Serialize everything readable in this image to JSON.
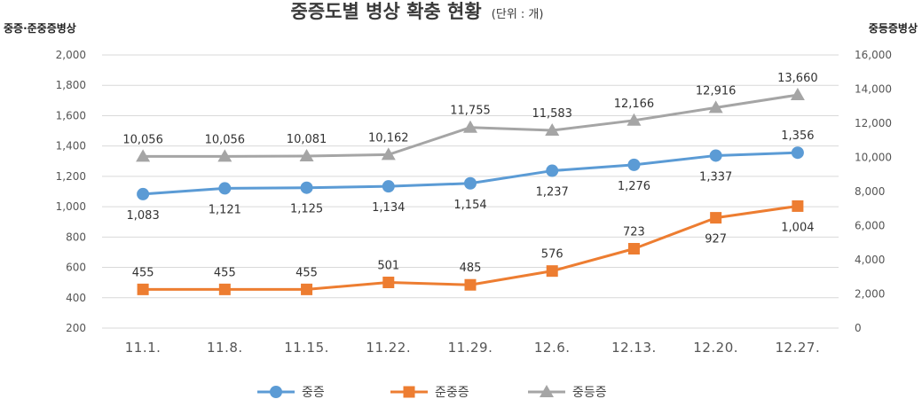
{
  "chart_data": {
    "type": "line",
    "title": "중증도별 병상 확충 현황",
    "title_unit": "(단위 : 개)",
    "ylabel_left": "중증·준중증병상",
    "ylabel_right": "중등증병상",
    "categories": [
      "11.1.",
      "11.8.",
      "11.15.",
      "11.22.",
      "11.29.",
      "12.6.",
      "12.13.",
      "12.20.",
      "12.27."
    ],
    "ylim_left": [
      200,
      2000
    ],
    "yticks_left": [
      200,
      400,
      600,
      800,
      1000,
      1200,
      1400,
      1600,
      1800,
      2000
    ],
    "ytick_labels_left": [
      "200",
      "400",
      "600",
      "800",
      "1,000",
      "1,200",
      "1,400",
      "1,600",
      "1,800",
      "2,000"
    ],
    "ylim_right": [
      0,
      16000
    ],
    "yticks_right": [
      0,
      2000,
      4000,
      6000,
      8000,
      10000,
      12000,
      14000,
      16000
    ],
    "ytick_labels_right": [
      "0",
      "2,000",
      "4,000",
      "6,000",
      "8,000",
      "10,000",
      "12,000",
      "14,000",
      "16,000"
    ],
    "grid": true,
    "legend_position": "bottom",
    "series": [
      {
        "name": "중증",
        "axis": "left",
        "marker": "circle",
        "color": "#5b9bd5",
        "values": [
          1083,
          1121,
          1125,
          1134,
          1154,
          1237,
          1276,
          1337,
          1356
        ],
        "labels": [
          "1,083",
          "1,121",
          "1,125",
          "1,134",
          "1,154",
          "1,237",
          "1,276",
          "1,337",
          "1,356"
        ],
        "label_position": [
          "below",
          "below",
          "below",
          "below",
          "below",
          "below",
          "below",
          "below",
          "above"
        ]
      },
      {
        "name": "준중증",
        "axis": "left",
        "marker": "square",
        "color": "#ed7d31",
        "values": [
          455,
          455,
          455,
          501,
          485,
          576,
          723,
          927,
          1004
        ],
        "labels": [
          "455",
          "455",
          "455",
          "501",
          "485",
          "576",
          "723",
          "927",
          "1,004"
        ],
        "label_position": [
          "above",
          "above",
          "above",
          "above",
          "above",
          "above",
          "above",
          "below",
          "below"
        ]
      },
      {
        "name": "중등증",
        "axis": "right",
        "marker": "triangle",
        "color": "#a5a5a5",
        "values": [
          10056,
          10056,
          10081,
          10162,
          11755,
          11583,
          12166,
          12916,
          13660
        ],
        "labels": [
          "10,056",
          "10,056",
          "10,081",
          "10,162",
          "11,755",
          "11,583",
          "12,166",
          "12,916",
          "13,660"
        ],
        "label_position": [
          "above",
          "above",
          "above",
          "above",
          "above",
          "above",
          "above",
          "above",
          "above"
        ]
      }
    ]
  }
}
